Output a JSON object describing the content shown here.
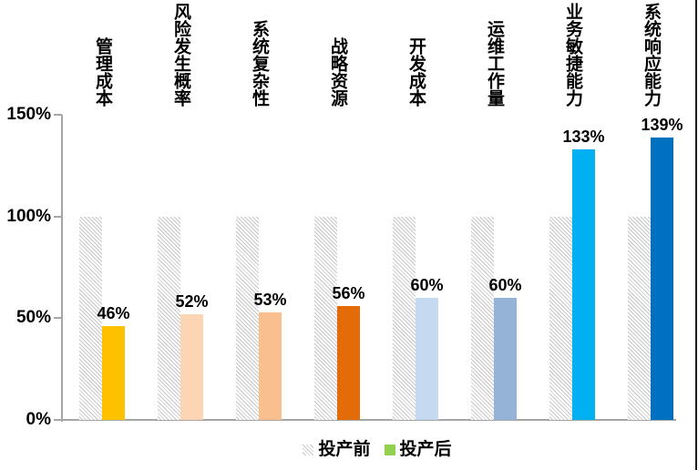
{
  "chart_data": {
    "type": "bar",
    "title": "",
    "xlabel": "",
    "ylabel": "",
    "categories": [
      "管理成本",
      "风险发生概率",
      "系统复杂性",
      "战略资源",
      "开发成本",
      "运维工作量",
      "业务敏捷能力",
      "系统响应能力"
    ],
    "series": [
      {
        "name": "投产前",
        "values": [
          100,
          100,
          100,
          100,
          100,
          100,
          100,
          100
        ],
        "style": "hatched-gray",
        "hatch_color": "#c6c6c6"
      },
      {
        "name": "投产后",
        "values": [
          46,
          52,
          53,
          56,
          60,
          60,
          133,
          139
        ],
        "colors": [
          "#FFC000",
          "#FCD5B4",
          "#FABF8F",
          "#E36C09",
          "#C5D9F1",
          "#95B3D7",
          "#00B0F0",
          "#0070C0"
        ]
      }
    ],
    "data_labels": [
      "46%",
      "52%",
      "53%",
      "56%",
      "60%",
      "60%",
      "133%",
      "139%"
    ],
    "ylim": [
      0,
      150
    ],
    "y_tick_values": [
      150,
      100,
      50,
      0
    ],
    "y_tick_labels": [
      "150%",
      "100%",
      "50%",
      "0%"
    ],
    "grid": false,
    "legend_position": "bottom"
  },
  "legend": {
    "items": [
      {
        "label": "投产前",
        "swatch": "hatch",
        "swatch_color": ""
      },
      {
        "label": "投产后",
        "swatch": "solid",
        "swatch_color": "#92D050"
      }
    ]
  },
  "colors": {
    "axis": "#a6a6a6",
    "text": "#000000",
    "background": "#ffffff",
    "right_border": "#1a1a1a"
  }
}
